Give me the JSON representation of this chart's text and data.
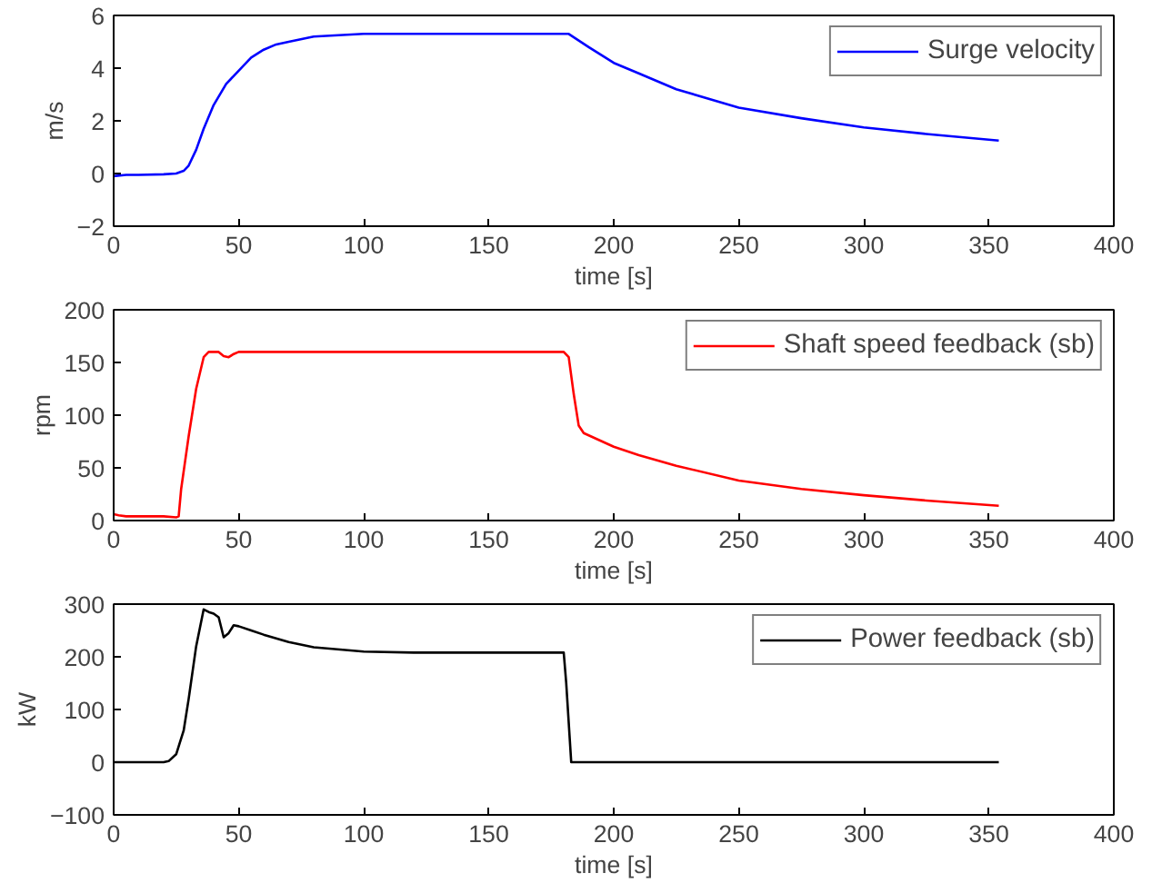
{
  "chart_data": [
    {
      "type": "line",
      "xlabel": "time [s]",
      "ylabel": "m/s",
      "legend": "top right",
      "xlim": [
        0,
        400
      ],
      "xticks": [
        0,
        50,
        100,
        150,
        200,
        250,
        300,
        350,
        400
      ],
      "ylim": [
        -2,
        6
      ],
      "yticks": [
        {
          "value": -2,
          "label": "−2"
        },
        0,
        2,
        4,
        6
      ],
      "x": [
        0,
        5,
        10,
        20,
        25,
        28,
        30,
        33,
        36,
        40,
        45,
        50,
        55,
        60,
        65,
        70,
        80,
        90,
        100,
        120,
        150,
        170,
        182,
        190,
        200,
        210,
        225,
        250,
        275,
        300,
        325,
        354
      ],
      "series": [
        {
          "name": "Surge velocity",
          "color": "#0000ff",
          "values": [
            -0.1,
            -0.05,
            -0.05,
            -0.03,
            0.0,
            0.1,
            0.3,
            0.9,
            1.7,
            2.6,
            3.4,
            3.9,
            4.4,
            4.7,
            4.9,
            5.0,
            5.2,
            5.25,
            5.3,
            5.3,
            5.3,
            5.3,
            5.3,
            4.8,
            4.2,
            3.8,
            3.2,
            2.5,
            2.1,
            1.75,
            1.5,
            1.25
          ]
        }
      ]
    },
    {
      "type": "line",
      "xlabel": "time [s]",
      "ylabel": "rpm",
      "legend": "top right",
      "xlim": [
        0,
        400
      ],
      "xticks": [
        0,
        50,
        100,
        150,
        200,
        250,
        300,
        350,
        400
      ],
      "ylim": [
        0,
        200
      ],
      "yticks": [
        0,
        50,
        100,
        150,
        200
      ],
      "x": [
        0,
        2,
        5,
        20,
        25,
        26,
        27,
        30,
        33,
        36,
        38,
        42,
        44,
        46,
        48,
        50,
        100,
        150,
        180,
        182,
        184,
        186,
        188,
        200,
        210,
        225,
        250,
        275,
        300,
        325,
        354
      ],
      "series": [
        {
          "name": "Shaft speed feedback (sb)",
          "color": "#ff0000",
          "values": [
            6,
            5,
            4,
            4,
            3,
            4,
            30,
            80,
            125,
            155,
            160,
            160,
            156,
            155,
            158,
            160,
            160,
            160,
            160,
            155,
            120,
            90,
            83,
            70,
            62,
            52,
            38,
            30,
            24,
            19,
            14
          ]
        }
      ]
    },
    {
      "type": "line",
      "xlabel": "time [s]",
      "ylabel": "kW",
      "legend": "top right",
      "xlim": [
        0,
        400
      ],
      "xticks": [
        0,
        50,
        100,
        150,
        200,
        250,
        300,
        350,
        400
      ],
      "ylim": [
        -100,
        300
      ],
      "yticks": [
        {
          "value": -100,
          "label": "−100"
        },
        0,
        100,
        200,
        300
      ],
      "x": [
        0,
        10,
        20,
        22,
        25,
        28,
        30,
        33,
        36,
        38,
        40,
        42,
        44,
        46,
        48,
        50,
        55,
        60,
        70,
        80,
        100,
        120,
        150,
        180,
        181,
        183,
        200,
        250,
        300,
        354
      ],
      "series": [
        {
          "name": "Power feedback (sb)",
          "color": "#000000",
          "values": [
            0,
            0,
            0,
            2,
            15,
            60,
            120,
            220,
            290,
            285,
            282,
            275,
            237,
            245,
            260,
            258,
            250,
            242,
            228,
            218,
            210,
            208,
            208,
            208,
            150,
            0,
            0,
            0,
            0,
            0
          ]
        }
      ]
    }
  ]
}
